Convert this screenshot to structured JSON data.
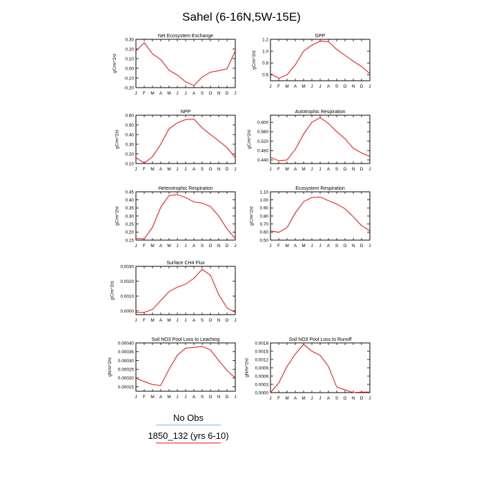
{
  "title": "Sahel (6-16N,5W-15E)",
  "months": [
    "J",
    "F",
    "M",
    "A",
    "M",
    "J",
    "J",
    "A",
    "S",
    "O",
    "N",
    "D",
    "J"
  ],
  "colors": {
    "series": "#ff0000",
    "obs_line": "#7fa7ff",
    "model_line": "#ff0000"
  },
  "legend": {
    "obs_label": "No Obs",
    "model_label": "1850_132 (yrs 6-10)"
  },
  "chart_data": [
    {
      "type": "line",
      "title": "Net Ecosystem Exchange",
      "ylabel": "gC/m^2/d",
      "ylim": [
        -0.2,
        0.3
      ],
      "yticks": [
        "-0.20",
        "-0.10",
        "0.00",
        "0.10",
        "0.20",
        "0.30"
      ],
      "ytick_values": [
        -0.2,
        -0.1,
        0.0,
        0.1,
        0.2,
        0.3
      ],
      "x": [
        "J",
        "F",
        "M",
        "A",
        "M",
        "J",
        "J",
        "A",
        "S",
        "O",
        "N",
        "D",
        "J"
      ],
      "series": [
        {
          "values": [
            0.18,
            0.265,
            0.15,
            0.09,
            -0.02,
            -0.07,
            -0.14,
            -0.18,
            -0.09,
            -0.04,
            -0.025,
            -0.005,
            0.18
          ]
        }
      ]
    },
    {
      "type": "line",
      "title": "GPP",
      "ylabel": "gC/m^2/d",
      "ylim": [
        0.5,
        1.2
      ],
      "yticks": [
        "0.6",
        "0.8",
        "1.0",
        "1.2"
      ],
      "ytick_values": [
        0.6,
        0.8,
        1.0,
        1.2
      ],
      "x": [
        "J",
        "F",
        "M",
        "A",
        "M",
        "J",
        "J",
        "A",
        "S",
        "O",
        "N",
        "D",
        "J"
      ],
      "series": [
        {
          "values": [
            0.62,
            0.54,
            0.6,
            0.77,
            1.0,
            1.1,
            1.17,
            1.16,
            1.03,
            0.93,
            0.83,
            0.74,
            0.62
          ]
        }
      ]
    },
    {
      "type": "line",
      "title": "NPP",
      "ylabel": "gC/m^2/d",
      "ylim": [
        0.1,
        0.6
      ],
      "yticks": [
        "0.10",
        "0.20",
        "0.30",
        "0.40",
        "0.50",
        "0.60"
      ],
      "ytick_values": [
        0.1,
        0.2,
        0.3,
        0.4,
        0.5,
        0.6
      ],
      "x": [
        "J",
        "F",
        "M",
        "A",
        "M",
        "J",
        "J",
        "A",
        "S",
        "O",
        "N",
        "D",
        "J"
      ],
      "series": [
        {
          "values": [
            0.16,
            0.105,
            0.17,
            0.3,
            0.46,
            0.52,
            0.555,
            0.56,
            0.47,
            0.4,
            0.335,
            0.265,
            0.16
          ]
        }
      ]
    },
    {
      "type": "line",
      "title": "Autotrophic Respiration",
      "ylabel": "gC/m^2/d",
      "ylim": [
        0.425,
        0.63
      ],
      "yticks": [
        "0.440",
        "0.480",
        "0.520",
        "0.560",
        "0.600"
      ],
      "ytick_values": [
        0.44,
        0.48,
        0.52,
        0.56,
        0.6
      ],
      "x": [
        "J",
        "F",
        "M",
        "A",
        "M",
        "J",
        "J",
        "A",
        "S",
        "O",
        "N",
        "D",
        "J"
      ],
      "series": [
        {
          "values": [
            0.452,
            0.437,
            0.44,
            0.485,
            0.55,
            0.6,
            0.62,
            0.595,
            0.56,
            0.53,
            0.49,
            0.47,
            0.455
          ]
        }
      ]
    },
    {
      "type": "line",
      "title": "Heterotrophic Respiration",
      "ylabel": "gC/m^2/d",
      "ylim": [
        0.15,
        0.45
      ],
      "yticks": [
        "0.15",
        "0.20",
        "0.25",
        "0.30",
        "0.35",
        "0.40",
        "0.45"
      ],
      "ytick_values": [
        0.15,
        0.2,
        0.25,
        0.3,
        0.35,
        0.4,
        0.45
      ],
      "x": [
        "J",
        "F",
        "M",
        "A",
        "M",
        "J",
        "J",
        "A",
        "S",
        "O",
        "N",
        "D",
        "J"
      ],
      "series": [
        {
          "values": [
            0.16,
            0.158,
            0.23,
            0.355,
            0.427,
            0.432,
            0.415,
            0.387,
            0.38,
            0.358,
            0.3,
            0.22,
            0.16
          ]
        }
      ]
    },
    {
      "type": "line",
      "title": "Ecosystem Respiration",
      "ylabel": "gC/m^2/d",
      "ylim": [
        0.5,
        1.1
      ],
      "yticks": [
        "0.50",
        "0.60",
        "0.70",
        "0.80",
        "0.90",
        "1.00",
        "1.10"
      ],
      "ytick_values": [
        0.5,
        0.6,
        0.7,
        0.8,
        0.9,
        1.0,
        1.1
      ],
      "x": [
        "J",
        "F",
        "M",
        "A",
        "M",
        "J",
        "J",
        "A",
        "S",
        "O",
        "N",
        "D",
        "J"
      ],
      "series": [
        {
          "values": [
            0.615,
            0.597,
            0.655,
            0.838,
            0.978,
            1.03,
            1.035,
            0.99,
            0.948,
            0.89,
            0.79,
            0.68,
            0.615
          ]
        }
      ]
    },
    {
      "type": "line",
      "title": "Surface CH4 Flux",
      "ylabel": "gC/m^2/d",
      "ylim": [
        -0.00025,
        0.003
      ],
      "yticks": [
        "0.0000",
        "0.0010",
        "0.0020",
        "0.0030"
      ],
      "ytick_values": [
        0.0,
        0.001,
        0.002,
        0.003
      ],
      "x": [
        "J",
        "F",
        "M",
        "A",
        "M",
        "J",
        "J",
        "A",
        "S",
        "O",
        "N",
        "D",
        "J"
      ],
      "series": [
        {
          "values": [
            -0.0001,
            -0.0001,
            0.0001,
            0.0007,
            0.0013,
            0.0016,
            0.0018,
            0.0022,
            0.0028,
            0.0024,
            0.0011,
            0.0002,
            -0.0001
          ]
        }
      ]
    },
    {
      "type": "line",
      "title": "Soil NO3 Pool Loss to Leaching",
      "ylabel": "gN/m^2/d",
      "ylim": [
        0.000125,
        0.0004
      ],
      "yticks": [
        "0.00015",
        "0.00020",
        "0.00025",
        "0.00030",
        "0.00035",
        "0.00040"
      ],
      "ytick_values": [
        0.00015,
        0.0002,
        0.00025,
        0.0003,
        0.00035,
        0.0004
      ],
      "x": [
        "J",
        "F",
        "M",
        "A",
        "M",
        "J",
        "J",
        "A",
        "S",
        "O",
        "N",
        "D",
        "J"
      ],
      "series": [
        {
          "values": [
            0.0002,
            0.00018,
            0.000163,
            0.000158,
            0.00025,
            0.00033,
            0.00037,
            0.000375,
            0.00038,
            0.00036,
            0.0003,
            0.000243,
            0.0002
          ]
        }
      ]
    },
    {
      "type": "line",
      "title": "Soil NO3 Pool Loss to Runoff",
      "ylabel": "gN/m^2/d",
      "ylim": [
        0.0,
        0.0018
      ],
      "yticks": [
        "0.0000",
        "0.0003",
        "0.0006",
        "0.0009",
        "0.0012",
        "0.0015",
        "0.0018"
      ],
      "ytick_values": [
        0.0,
        0.0003,
        0.0006,
        0.0009,
        0.0012,
        0.0015,
        0.0018
      ],
      "x": [
        "J",
        "F",
        "M",
        "A",
        "M",
        "J",
        "J",
        "A",
        "S",
        "O",
        "N",
        "D",
        "J"
      ],
      "series": [
        {
          "values": [
            0.0,
            0.00035,
            0.00095,
            0.0014,
            0.00175,
            0.0015,
            0.00135,
            0.00095,
            0.0002,
            0.0001,
            0.0,
            2e-05,
            2e-05
          ]
        }
      ]
    }
  ]
}
